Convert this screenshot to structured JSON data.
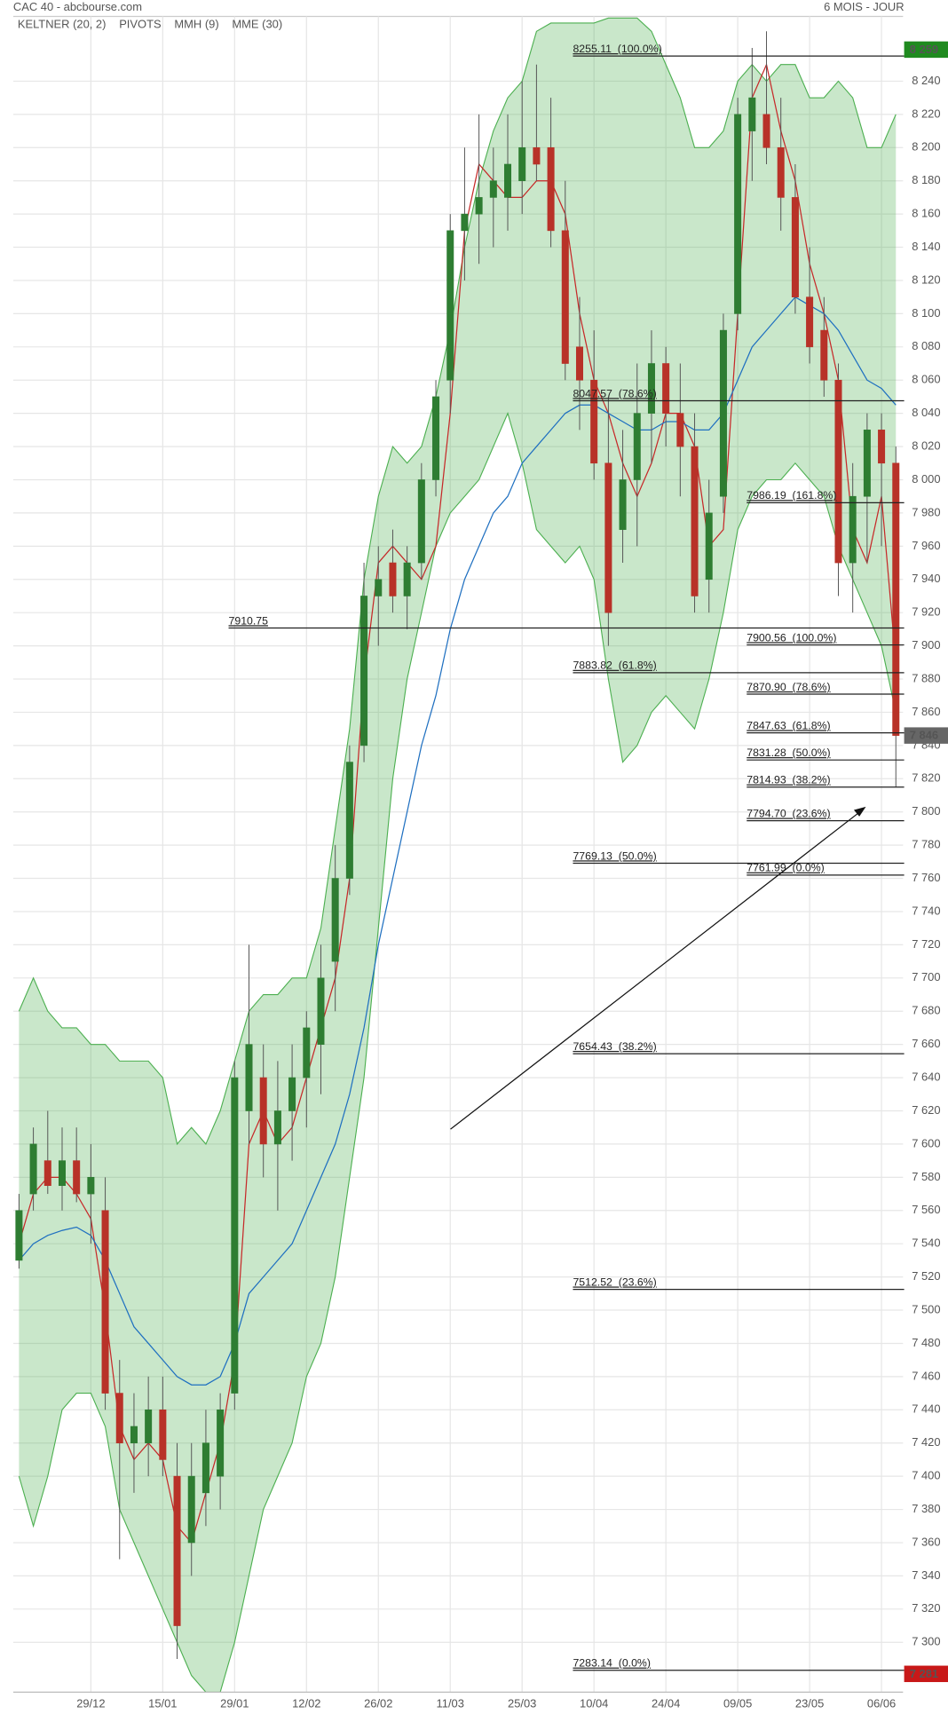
{
  "chart_data": {
    "type": "candlestick",
    "title": "CAC 40 - abcbourse.com",
    "subtitle": "6 MOIS - JOUR",
    "up_color": "#2e7d32",
    "down_color": "#b83228",
    "grid": true,
    "xlim": [
      -0.8,
      123
    ],
    "ylim": [
      7270,
      8279
    ],
    "xticks": [
      {
        "value": 10,
        "label": "29/12"
      },
      {
        "value": 20,
        "label": "15/01"
      },
      {
        "value": 30,
        "label": "29/01"
      },
      {
        "value": 40,
        "label": "12/02"
      },
      {
        "value": 50,
        "label": "26/02"
      },
      {
        "value": 60,
        "label": "11/03"
      },
      {
        "value": 70,
        "label": "25/03"
      },
      {
        "value": 80,
        "label": "10/04"
      },
      {
        "value": 90,
        "label": "24/04"
      },
      {
        "value": 100,
        "label": "09/05"
      },
      {
        "value": 110,
        "label": "23/05"
      },
      {
        "value": 120,
        "label": "06/06"
      }
    ],
    "yticks": [
      {
        "value": 7300,
        "label": "7 300"
      },
      {
        "value": 7320,
        "label": "7 320"
      },
      {
        "value": 7340,
        "label": "7 340"
      },
      {
        "value": 7360,
        "label": "7 360"
      },
      {
        "value": 7380,
        "label": "7 380"
      },
      {
        "value": 7400,
        "label": "7 400"
      },
      {
        "value": 7420,
        "label": "7 420"
      },
      {
        "value": 7440,
        "label": "7 440"
      },
      {
        "value": 7460,
        "label": "7 460"
      },
      {
        "value": 7480,
        "label": "7 480"
      },
      {
        "value": 7500,
        "label": "7 500"
      },
      {
        "value": 7520,
        "label": "7 520"
      },
      {
        "value": 7540,
        "label": "7 540"
      },
      {
        "value": 7560,
        "label": "7 560"
      },
      {
        "value": 7580,
        "label": "7 580"
      },
      {
        "value": 7600,
        "label": "7 600"
      },
      {
        "value": 7620,
        "label": "7 620"
      },
      {
        "value": 7640,
        "label": "7 640"
      },
      {
        "value": 7660,
        "label": "7 660"
      },
      {
        "value": 7680,
        "label": "7 680"
      },
      {
        "value": 7700,
        "label": "7 700"
      },
      {
        "value": 7720,
        "label": "7 720"
      },
      {
        "value": 7740,
        "label": "7 740"
      },
      {
        "value": 7760,
        "label": "7 760"
      },
      {
        "value": 7780,
        "label": "7 780"
      },
      {
        "value": 7800,
        "label": "7 800"
      },
      {
        "value": 7820,
        "label": "7 820"
      },
      {
        "value": 7840,
        "label": "7 840"
      },
      {
        "value": 7860,
        "label": "7 860"
      },
      {
        "value": 7880,
        "label": "7 880"
      },
      {
        "value": 7900,
        "label": "7 900"
      },
      {
        "value": 7920,
        "label": "7 920"
      },
      {
        "value": 7940,
        "label": "7 940"
      },
      {
        "value": 7960,
        "label": "7 960"
      },
      {
        "value": 7980,
        "label": "7 980"
      },
      {
        "value": 8000,
        "label": "8 000"
      },
      {
        "value": 8020,
        "label": "8 020"
      },
      {
        "value": 8040,
        "label": "8 040"
      },
      {
        "value": 8060,
        "label": "8 060"
      },
      {
        "value": 8080,
        "label": "8 080"
      },
      {
        "value": 8100,
        "label": "8 100"
      },
      {
        "value": 8120,
        "label": "8 120"
      },
      {
        "value": 8140,
        "label": "8 140"
      },
      {
        "value": 8160,
        "label": "8 160"
      },
      {
        "value": 8180,
        "label": "8 180"
      },
      {
        "value": 8200,
        "label": "8 200"
      },
      {
        "value": 8220,
        "label": "8 220"
      },
      {
        "value": 8240,
        "label": "8 240"
      }
    ],
    "x": [
      0,
      2,
      4,
      6,
      8,
      10,
      12,
      14,
      16,
      18,
      20,
      22,
      24,
      26,
      28,
      30,
      32,
      34,
      36,
      38,
      40,
      42,
      44,
      46,
      48,
      50,
      52,
      54,
      56,
      58,
      60,
      62,
      64,
      66,
      68,
      70,
      72,
      74,
      76,
      78,
      80,
      82,
      84,
      86,
      88,
      90,
      92,
      94,
      96,
      98,
      100,
      102,
      104,
      106,
      108,
      110,
      112,
      114,
      116,
      118,
      120,
      122
    ],
    "open": [
      7530,
      7570,
      7590,
      7575,
      7590,
      7570,
      7560,
      7450,
      7420,
      7420,
      7440,
      7400,
      7360,
      7390,
      7400,
      7450,
      7620,
      7640,
      7600,
      7620,
      7640,
      7660,
      7710,
      7760,
      7840,
      7930,
      7950,
      7930,
      7950,
      8000,
      8060,
      8150,
      8160,
      8170,
      8170,
      8180,
      8200,
      8200,
      8150,
      8080,
      8060,
      8010,
      7970,
      8000,
      8040,
      8070,
      8040,
      8020,
      7940,
      7990,
      8100,
      8210,
      8220,
      8200,
      8170,
      8110,
      8090,
      8060,
      7950,
      7990,
      8030,
      8010
    ],
    "high": [
      7570,
      7610,
      7620,
      7610,
      7610,
      7600,
      7580,
      7470,
      7450,
      7460,
      7460,
      7420,
      7420,
      7440,
      7450,
      7650,
      7720,
      7660,
      7650,
      7660,
      7680,
      7720,
      7780,
      7840,
      7950,
      7960,
      7970,
      7960,
      8010,
      8060,
      8160,
      8200,
      8220,
      8200,
      8220,
      8240,
      8250,
      8230,
      8180,
      8110,
      8090,
      8050,
      8030,
      8070,
      8090,
      8080,
      8070,
      8040,
      8000,
      8100,
      8230,
      8260,
      8270,
      8230,
      8190,
      8140,
      8110,
      8070,
      8010,
      8040,
      8040,
      8020
    ],
    "low": [
      7525,
      7560,
      7570,
      7560,
      7565,
      7540,
      7440,
      7350,
      7390,
      7400,
      7400,
      7290,
      7340,
      7370,
      7380,
      7440,
      7600,
      7580,
      7560,
      7590,
      7610,
      7630,
      7680,
      7750,
      7830,
      7900,
      7920,
      7910,
      7940,
      7990,
      8040,
      8120,
      8130,
      8140,
      8150,
      8160,
      8180,
      8140,
      8060,
      8030,
      8000,
      7900,
      7950,
      7960,
      8010,
      8020,
      7990,
      7920,
      7920,
      7980,
      8090,
      8180,
      8190,
      8150,
      8100,
      8070,
      8050,
      7930,
      7920,
      7950,
      7960,
      7815
    ],
    "close": [
      7560,
      7600,
      7575,
      7590,
      7570,
      7580,
      7450,
      7420,
      7430,
      7440,
      7410,
      7310,
      7400,
      7420,
      7440,
      7640,
      7660,
      7600,
      7620,
      7640,
      7670,
      7700,
      7760,
      7830,
      7930,
      7940,
      7930,
      7950,
      8000,
      8050,
      8150,
      8160,
      8170,
      8180,
      8190,
      8200,
      8190,
      8150,
      8070,
      8060,
      8010,
      7920,
      8000,
      8040,
      8070,
      8040,
      8020,
      7930,
      7980,
      8090,
      8220,
      8230,
      8200,
      8170,
      8110,
      8080,
      8060,
      7950,
      7990,
      8030,
      8010,
      7846
    ],
    "series": [
      {
        "name": "KELTNER (20, 2)",
        "color": "#4caf50",
        "upper": [
          7680,
          7700,
          7680,
          7670,
          7670,
          7660,
          7660,
          7650,
          7650,
          7650,
          7640,
          7600,
          7610,
          7600,
          7620,
          7650,
          7680,
          7690,
          7690,
          7700,
          7700,
          7730,
          7790,
          7850,
          7940,
          7990,
          8020,
          8010,
          8020,
          8050,
          8090,
          8140,
          8180,
          8210,
          8230,
          8240,
          8270,
          8275,
          8275,
          8275,
          8275,
          8278,
          8278,
          8278,
          8270,
          8250,
          8230,
          8200,
          8200,
          8210,
          8240,
          8250,
          8240,
          8250,
          8250,
          8230,
          8230,
          8240,
          8230,
          8200,
          8200,
          8220
        ],
        "lower": [
          7400,
          7370,
          7400,
          7440,
          7450,
          7450,
          7430,
          7380,
          7360,
          7340,
          7320,
          7300,
          7280,
          7270,
          7270,
          7300,
          7340,
          7380,
          7400,
          7420,
          7460,
          7480,
          7520,
          7580,
          7640,
          7730,
          7820,
          7880,
          7920,
          7960,
          7980,
          7990,
          8000,
          8020,
          8040,
          8010,
          7970,
          7960,
          7950,
          7960,
          7940,
          7880,
          7830,
          7840,
          7860,
          7870,
          7860,
          7850,
          7880,
          7920,
          7970,
          7990,
          8000,
          8000,
          8010,
          8000,
          7990,
          7960,
          7940,
          7920,
          7900,
          7860
        ]
      },
      {
        "name": "PIVOTS",
        "color": "#222222",
        "levels": [
          {
            "value": 8255.11,
            "label": "8255.11  (100.0%)"
          },
          {
            "value": 8047.57,
            "label": "8047.57  (78.6%)"
          },
          {
            "value": 7986.19,
            "label": "7986.19  (161.8%)"
          },
          {
            "value": 7910.75,
            "label": "7910.75"
          },
          {
            "value": 7900.56,
            "label": "7900.56  (100.0%)"
          },
          {
            "value": 7883.82,
            "label": "7883.82  (61.8%)"
          },
          {
            "value": 7870.9,
            "label": "7870.90  (78.6%)"
          },
          {
            "value": 7847.63,
            "label": "7847.63  (61.8%)"
          },
          {
            "value": 7831.28,
            "label": "7831.28  (50.0%)"
          },
          {
            "value": 7814.93,
            "label": "7814.93  (38.2%)"
          },
          {
            "value": 7794.7,
            "label": "7794.70  (23.6%)"
          },
          {
            "value": 7769.13,
            "label": "7769.13  (50.0%)"
          },
          {
            "value": 7761.99,
            "label": "7761.99  (0.0%)"
          },
          {
            "value": 7654.43,
            "label": "7654.43  (38.2%)"
          },
          {
            "value": 7512.52,
            "label": "7512.52  (23.6%)"
          },
          {
            "value": 7283.14,
            "label": "7283.14  (0.0%)"
          }
        ]
      },
      {
        "name": "MMH (9)",
        "color": "#c62828",
        "values": [
          7540,
          7570,
          7580,
          7580,
          7570,
          7555,
          7500,
          7430,
          7410,
          7420,
          7410,
          7370,
          7360,
          7390,
          7420,
          7470,
          7600,
          7620,
          7600,
          7610,
          7640,
          7670,
          7700,
          7760,
          7880,
          7950,
          7960,
          7950,
          7940,
          7960,
          8040,
          8150,
          8190,
          8180,
          8170,
          8170,
          8180,
          8180,
          8160,
          8100,
          8060,
          8040,
          8010,
          7990,
          8010,
          8040,
          8040,
          8020,
          7960,
          7970,
          8100,
          8230,
          8250,
          8210,
          8180,
          8130,
          8100,
          8060,
          7970,
          7950,
          7990,
          7890
        ]
      },
      {
        "name": "MME (30)",
        "color": "#1e6fc0",
        "values": [
          7530,
          7540,
          7545,
          7548,
          7550,
          7545,
          7530,
          7510,
          7490,
          7480,
          7470,
          7460,
          7455,
          7455,
          7460,
          7480,
          7510,
          7520,
          7530,
          7540,
          7560,
          7580,
          7600,
          7630,
          7670,
          7720,
          7760,
          7800,
          7840,
          7870,
          7910,
          7940,
          7960,
          7980,
          7990,
          8010,
          8020,
          8030,
          8040,
          8045,
          8045,
          8040,
          8035,
          8030,
          8030,
          8035,
          8035,
          8030,
          8030,
          8040,
          8060,
          8080,
          8090,
          8100,
          8110,
          8105,
          8100,
          8090,
          8075,
          8060,
          8055,
          8045
        ]
      }
    ],
    "price_markers": [
      {
        "value": 8259,
        "label": "8 259",
        "color": "#1f8a1f"
      },
      {
        "value": 7846,
        "label": "7 846",
        "color": "#666666"
      },
      {
        "value": 7281,
        "label": "7 281",
        "color": "#c81818"
      }
    ]
  }
}
